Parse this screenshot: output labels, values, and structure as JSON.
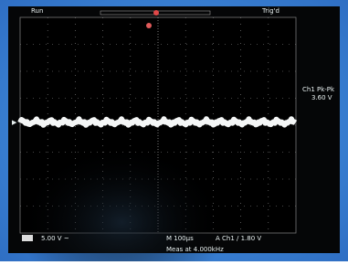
{
  "header": {
    "status": "Run",
    "trigger_state": "Trig'd"
  },
  "measurement": {
    "label": "Ch1 Pk-Pk",
    "value": "3.60 V"
  },
  "footer": {
    "channel_scale": "5.00 V ~",
    "timebase": "M 100µs",
    "trigger": "A  Ch1  /  1.80 V",
    "note": "Meas at 4.000kHz"
  }
}
